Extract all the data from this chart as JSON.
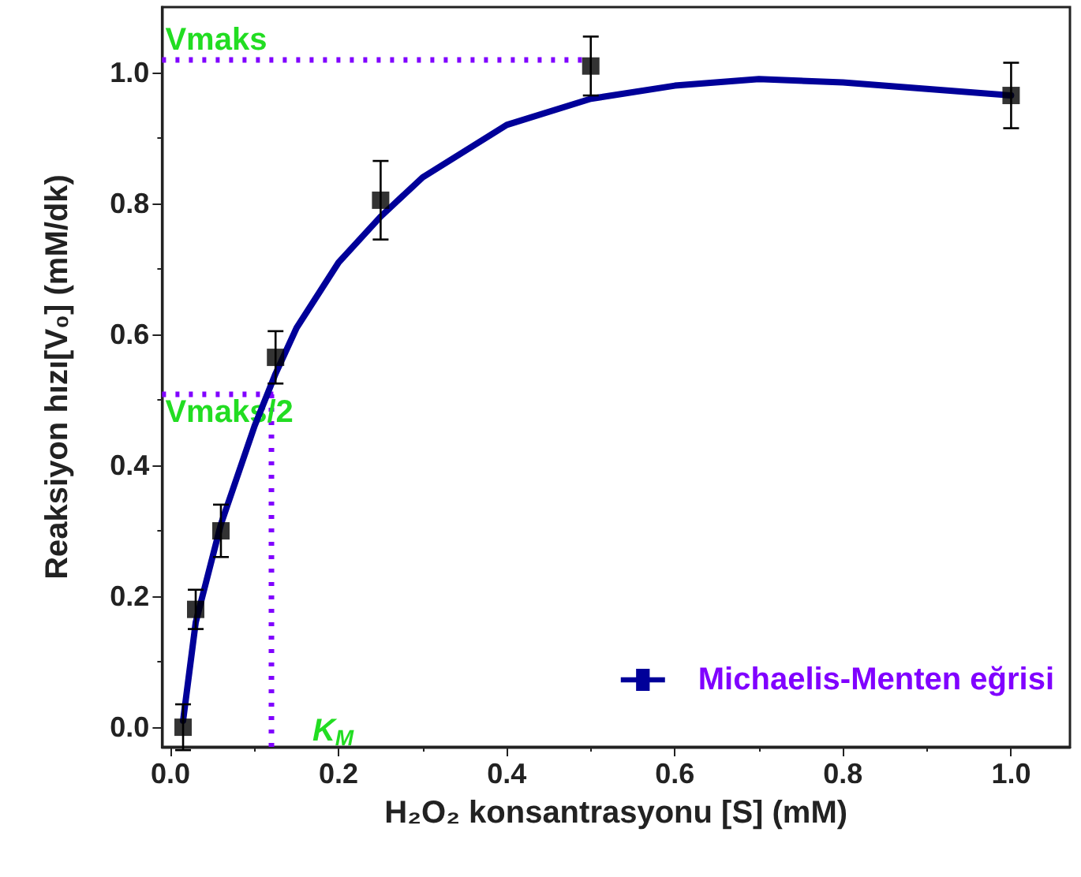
{
  "chart_data": {
    "type": "scatter",
    "xlabel": "H₂O₂ konsantrasyonu [S] (mM)",
    "ylabel": "Reaksiyon hızı[V₀] (mM/dk)",
    "series": [
      {
        "color": "#000000",
        "marker": "square",
        "x": [
          0.015,
          0.03,
          0.06,
          0.125,
          0.25,
          0.5,
          1.0
        ],
        "values": [
          0.0,
          0.18,
          0.3,
          0.565,
          0.805,
          1.01,
          0.965
        ],
        "errors": [
          0.035,
          0.03,
          0.04,
          0.04,
          0.06,
          0.045,
          0.05
        ]
      },
      {
        "type": "line",
        "name": "Michaelis-Menten eğrisi",
        "color": "#000099",
        "x": [
          0.015,
          0.03,
          0.06,
          0.1,
          0.125,
          0.15,
          0.2,
          0.25,
          0.3,
          0.4,
          0.5,
          0.6,
          0.7,
          0.8,
          0.9,
          1.0
        ],
        "values": [
          0.01,
          0.16,
          0.31,
          0.46,
          0.54,
          0.61,
          0.71,
          0.78,
          0.84,
          0.92,
          0.96,
          0.98,
          0.99,
          0.985,
          0.975,
          0.965
        ]
      }
    ],
    "ref_lines": [
      {
        "axis": "y",
        "value": 1.02,
        "label": "Vmaks",
        "color": "#8000ff",
        "line_style": "dotted"
      },
      {
        "axis": "y",
        "value": 0.51,
        "label": "Vmaks/2",
        "color": "#8000ff",
        "line_style": "dotted"
      },
      {
        "axis": "x",
        "value": 0.12,
        "label": "K$_{M}$",
        "color": "#8000ff",
        "line_style": "dotted"
      }
    ],
    "xlim": [
      -0.01,
      1.07
    ],
    "xticks": [
      {
        "value": 0,
        "label": "0.0"
      },
      0.2,
      0.4,
      0.6,
      0.8,
      {
        "value": 1,
        "label": "1.0"
      }
    ],
    "ylim": [
      -0.03,
      1.1
    ],
    "yticks": [
      {
        "value": 0,
        "label": "0.0"
      },
      0.2,
      0.4,
      0.6,
      0.8,
      {
        "value": 1,
        "label": "1.0"
      }
    ],
    "grid": false,
    "legend": "bottom right"
  }
}
